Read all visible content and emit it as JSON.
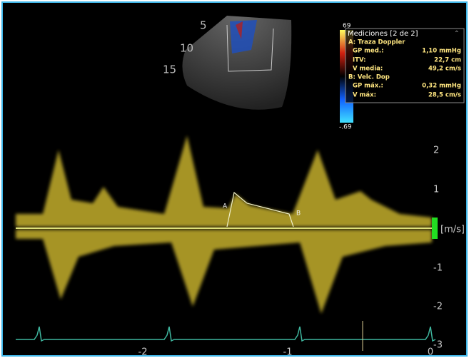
{
  "sector": {
    "depth_labels": [
      "5",
      "10",
      "15"
    ]
  },
  "color_scale": {
    "max": "69",
    "min": "-.69"
  },
  "measurements": {
    "title": "Mediciones [2 de 2]",
    "groups": [
      {
        "name": "A: Traza Doppler",
        "rows": [
          [
            "GP med.:",
            "1,10 mmHg"
          ],
          [
            "ITV:",
            "22,7 cm"
          ],
          [
            "V media:",
            "49,2 cm/s"
          ]
        ]
      },
      {
        "name": "B: Velc. Dop",
        "rows": [
          [
            "GP máx.:",
            "0,32 mmHg"
          ],
          [
            "V máx:",
            "28,5 cm/s"
          ]
        ]
      }
    ]
  },
  "velocity_axis": {
    "labels": [
      "2",
      "1",
      "[m/s]",
      "-1",
      "-2",
      "-3"
    ]
  },
  "time_axis": {
    "labels": [
      "-2",
      "-1",
      "0"
    ]
  },
  "markers": [
    "A",
    "B"
  ]
}
